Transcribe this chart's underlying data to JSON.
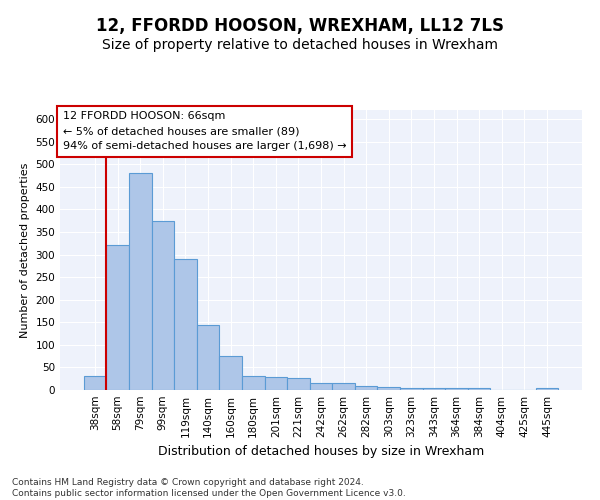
{
  "title": "12, FFORDD HOOSON, WREXHAM, LL12 7LS",
  "subtitle": "Size of property relative to detached houses in Wrexham",
  "xlabel": "Distribution of detached houses by size in Wrexham",
  "ylabel": "Number of detached properties",
  "categories": [
    "38sqm",
    "58sqm",
    "79sqm",
    "99sqm",
    "119sqm",
    "140sqm",
    "160sqm",
    "180sqm",
    "201sqm",
    "221sqm",
    "242sqm",
    "262sqm",
    "282sqm",
    "303sqm",
    "323sqm",
    "343sqm",
    "364sqm",
    "384sqm",
    "404sqm",
    "425sqm",
    "445sqm"
  ],
  "values": [
    30,
    320,
    480,
    375,
    290,
    143,
    76,
    31,
    29,
    27,
    15,
    15,
    8,
    6,
    5,
    5,
    5,
    5,
    0,
    0,
    5
  ],
  "bar_color": "#aec6e8",
  "bar_edge_color": "#5b9bd5",
  "vline_x_index": 1,
  "vline_color": "#cc0000",
  "annotation_text": "12 FFORDD HOOSON: 66sqm\n← 5% of detached houses are smaller (89)\n94% of semi-detached houses are larger (1,698) →",
  "annotation_box_color": "#ffffff",
  "annotation_box_edge_color": "#cc0000",
  "ylim": [
    0,
    620
  ],
  "yticks": [
    0,
    50,
    100,
    150,
    200,
    250,
    300,
    350,
    400,
    450,
    500,
    550,
    600
  ],
  "background_color": "#eef2fb",
  "grid_color": "#ffffff",
  "footer_text": "Contains HM Land Registry data © Crown copyright and database right 2024.\nContains public sector information licensed under the Open Government Licence v3.0.",
  "title_fontsize": 12,
  "subtitle_fontsize": 10,
  "xlabel_fontsize": 9,
  "ylabel_fontsize": 8,
  "tick_fontsize": 7.5,
  "annotation_fontsize": 8,
  "footer_fontsize": 6.5
}
